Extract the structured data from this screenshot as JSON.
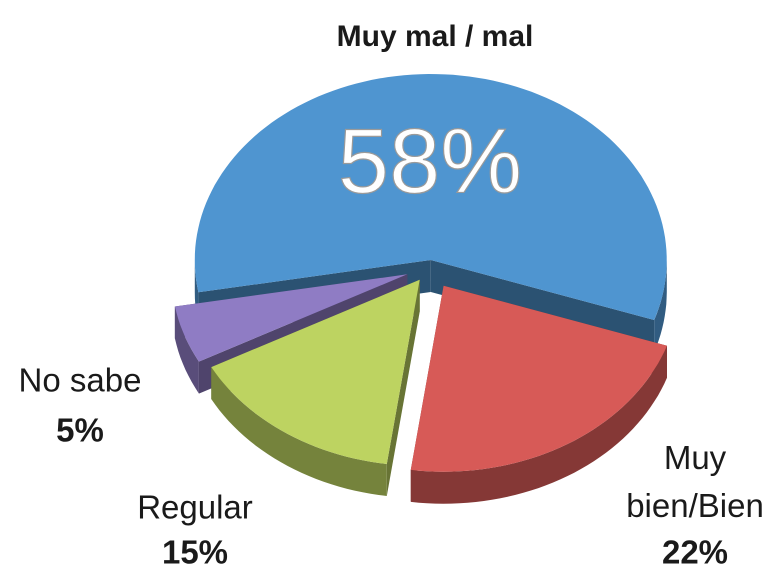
{
  "chart_data": {
    "type": "pie",
    "categories": [
      "Muy mal / mal",
      "Muy bien/Bien",
      "Regular",
      "No sabe"
    ],
    "values": [
      58,
      22,
      15,
      5
    ],
    "value_labels": [
      "58%",
      "22%",
      "15%",
      "5%"
    ],
    "colors": [
      "#4f95d0",
      "#d75a57",
      "#bdd361",
      "#8f7cc4"
    ]
  }
}
